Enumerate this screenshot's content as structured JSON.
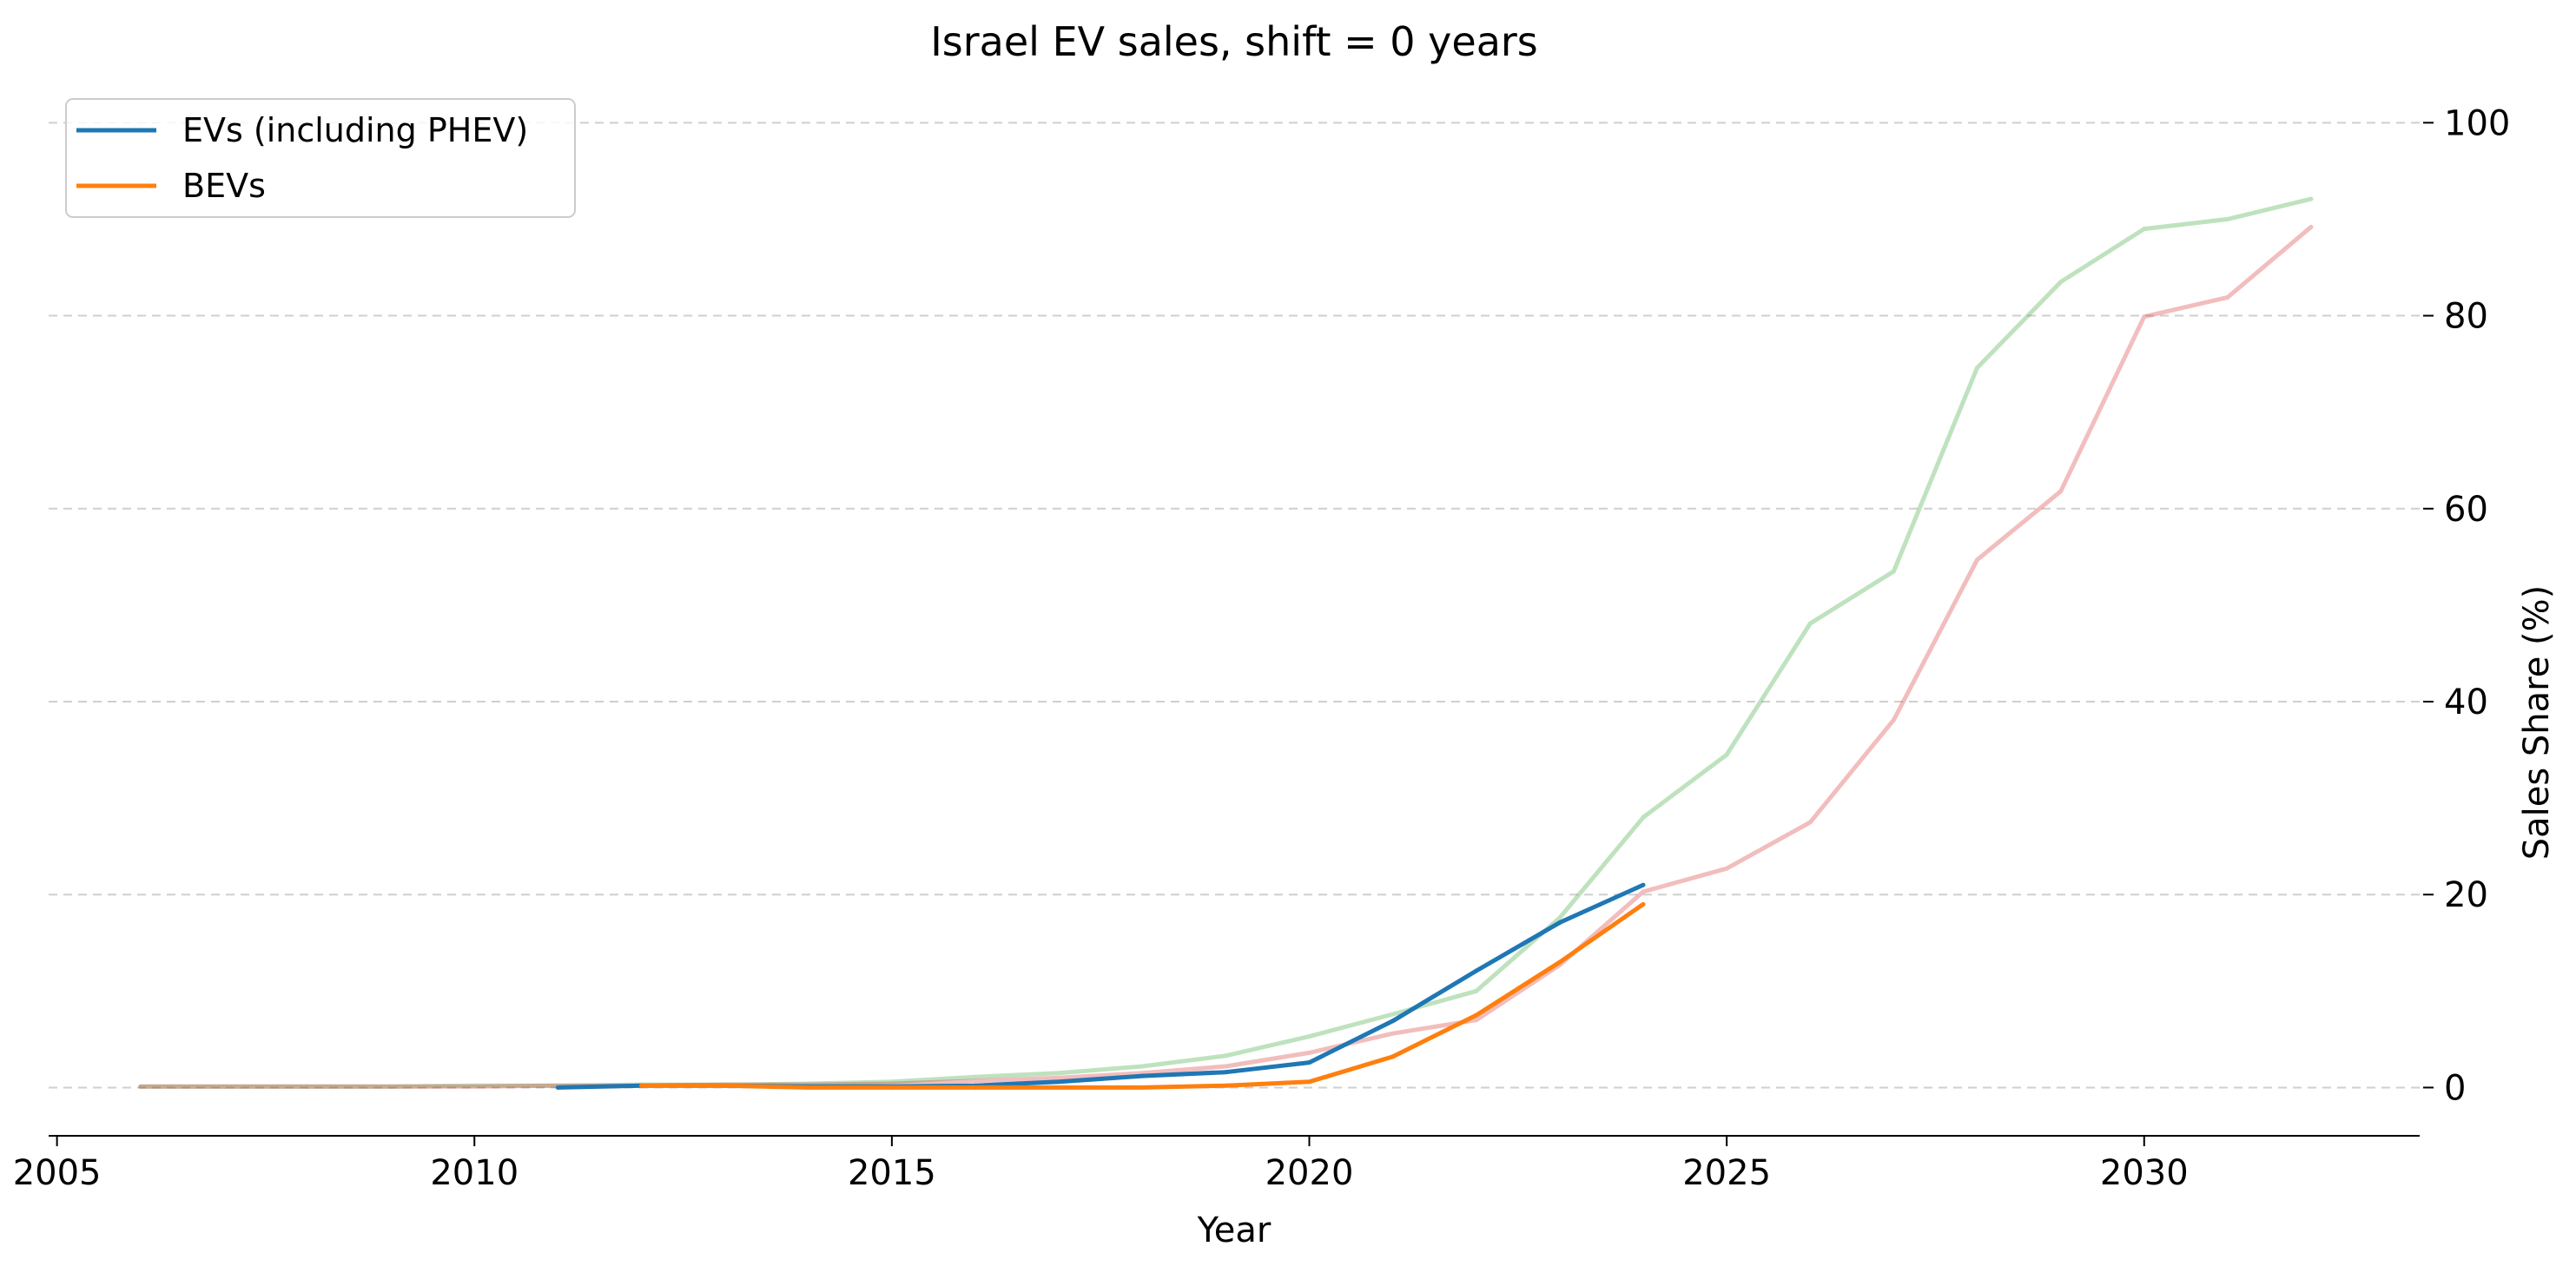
{
  "chart_data": {
    "type": "line",
    "title": "Israel EV sales, shift = 0 years",
    "xlabel": "Year",
    "ylabel": "Sales Share (%)",
    "xlim": [
      2004.9,
      2033.3
    ],
    "ylim": [
      -5,
      103
    ],
    "x_ticks": [
      "2005",
      "2010",
      "2015",
      "2020",
      "2025",
      "2030"
    ],
    "y_ticks": [
      "0",
      "20",
      "40",
      "60",
      "80",
      "100"
    ],
    "y_axis_position": "right",
    "grid": "horizontal dashed",
    "legend_position": "top-left",
    "series": [
      {
        "name": "",
        "color": "#2ca02c",
        "opacity": 0.3,
        "x": [
          2006,
          2007,
          2008,
          2009,
          2010,
          2011,
          2012,
          2013,
          2014,
          2015,
          2016,
          2017,
          2018,
          2019,
          2020,
          2021,
          2022,
          2023,
          2024,
          2025,
          2026,
          2027,
          2028,
          2029,
          2030,
          2031,
          2032
        ],
        "values": [
          0.1,
          0.1,
          0.1,
          0.1,
          0.2,
          0.2,
          0.3,
          0.3,
          0.4,
          0.6,
          1.1,
          1.5,
          2.2,
          3.3,
          5.3,
          7.6,
          10.0,
          17.6,
          28.0,
          34.5,
          48.1,
          53.5,
          74.6,
          83.5,
          89.0,
          90.0,
          92.1
        ]
      },
      {
        "name": "",
        "color": "#d62728",
        "opacity": 0.3,
        "x": [
          2006,
          2007,
          2008,
          2009,
          2010,
          2011,
          2012,
          2013,
          2014,
          2015,
          2016,
          2017,
          2018,
          2019,
          2020,
          2021,
          2022,
          2023,
          2024,
          2025,
          2026,
          2027,
          2028,
          2029,
          2030,
          2031,
          2032
        ],
        "values": [
          0.1,
          0.1,
          0.1,
          0.1,
          0.1,
          0.2,
          0.2,
          0.3,
          0.3,
          0.4,
          0.7,
          1.0,
          1.5,
          2.2,
          3.6,
          5.6,
          7.0,
          12.7,
          20.3,
          22.7,
          27.5,
          38.1,
          54.7,
          61.8,
          79.9,
          81.9,
          89.2
        ]
      },
      {
        "name": "EVs (including PHEV)",
        "color": "#1f77b4",
        "opacity": 1,
        "x": [
          2011,
          2012,
          2013,
          2014,
          2015,
          2016,
          2017,
          2018,
          2019,
          2020,
          2021,
          2022,
          2023,
          2024
        ],
        "values": [
          0.0,
          0.2,
          0.2,
          0.1,
          0.1,
          0.2,
          0.6,
          1.2,
          1.6,
          2.6,
          6.9,
          12.1,
          17.1,
          21.0
        ]
      },
      {
        "name": "BEVs",
        "color": "#ff7f0e",
        "opacity": 1,
        "x": [
          2012,
          2013,
          2014,
          2015,
          2016,
          2017,
          2018,
          2019,
          2020,
          2021,
          2022,
          2023,
          2024
        ],
        "values": [
          0.2,
          0.2,
          0.0,
          0.0,
          0.0,
          0.0,
          0.0,
          0.2,
          0.6,
          3.2,
          7.5,
          13.0,
          19.0
        ]
      }
    ]
  }
}
